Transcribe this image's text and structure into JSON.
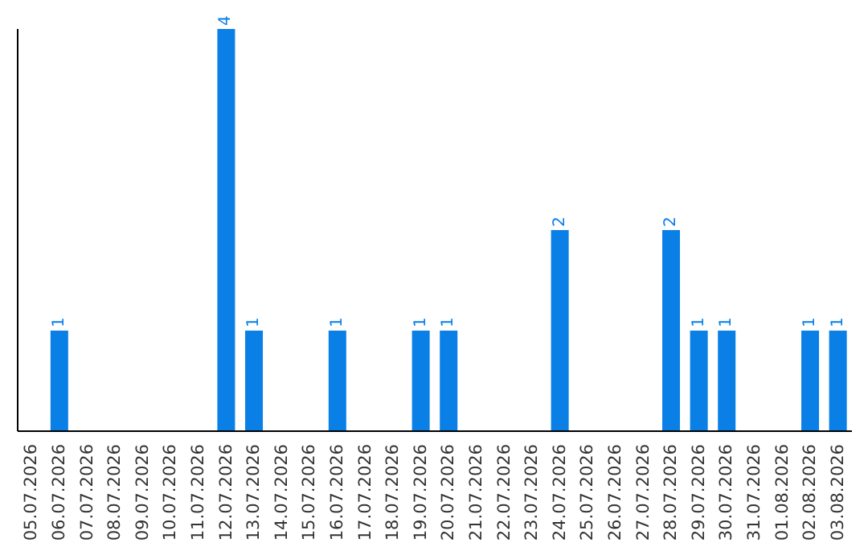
{
  "chart_data": {
    "type": "bar",
    "categories": [
      "05.07.2026",
      "06.07.2026",
      "07.07.2026",
      "08.07.2026",
      "09.07.2026",
      "10.07.2026",
      "11.07.2026",
      "12.07.2026",
      "13.07.2026",
      "14.07.2026",
      "15.07.2026",
      "16.07.2026",
      "17.07.2026",
      "18.07.2026",
      "19.07.2026",
      "20.07.2026",
      "21.07.2026",
      "22.07.2026",
      "23.07.2026",
      "24.07.2026",
      "25.07.2026",
      "26.07.2026",
      "27.07.2026",
      "28.07.2026",
      "29.07.2026",
      "30.07.2026",
      "31.07.2026",
      "01.08.2026",
      "02.08.2026",
      "03.08.2026"
    ],
    "values": [
      0,
      1,
      0,
      0,
      0,
      0,
      0,
      4,
      1,
      0,
      0,
      1,
      0,
      0,
      1,
      1,
      0,
      0,
      0,
      2,
      0,
      0,
      0,
      2,
      1,
      1,
      0,
      0,
      1,
      1
    ],
    "value_labels": [
      null,
      "1",
      null,
      null,
      null,
      null,
      null,
      "4",
      "1",
      null,
      null,
      "1",
      null,
      null,
      "1",
      "1",
      null,
      null,
      null,
      "2",
      null,
      null,
      null,
      "2",
      "1",
      "1",
      null,
      null,
      "1",
      "1"
    ],
    "color": "#0a7fe6",
    "ylim": [
      0,
      4
    ],
    "tick_labels": "x",
    "grid": false
  }
}
